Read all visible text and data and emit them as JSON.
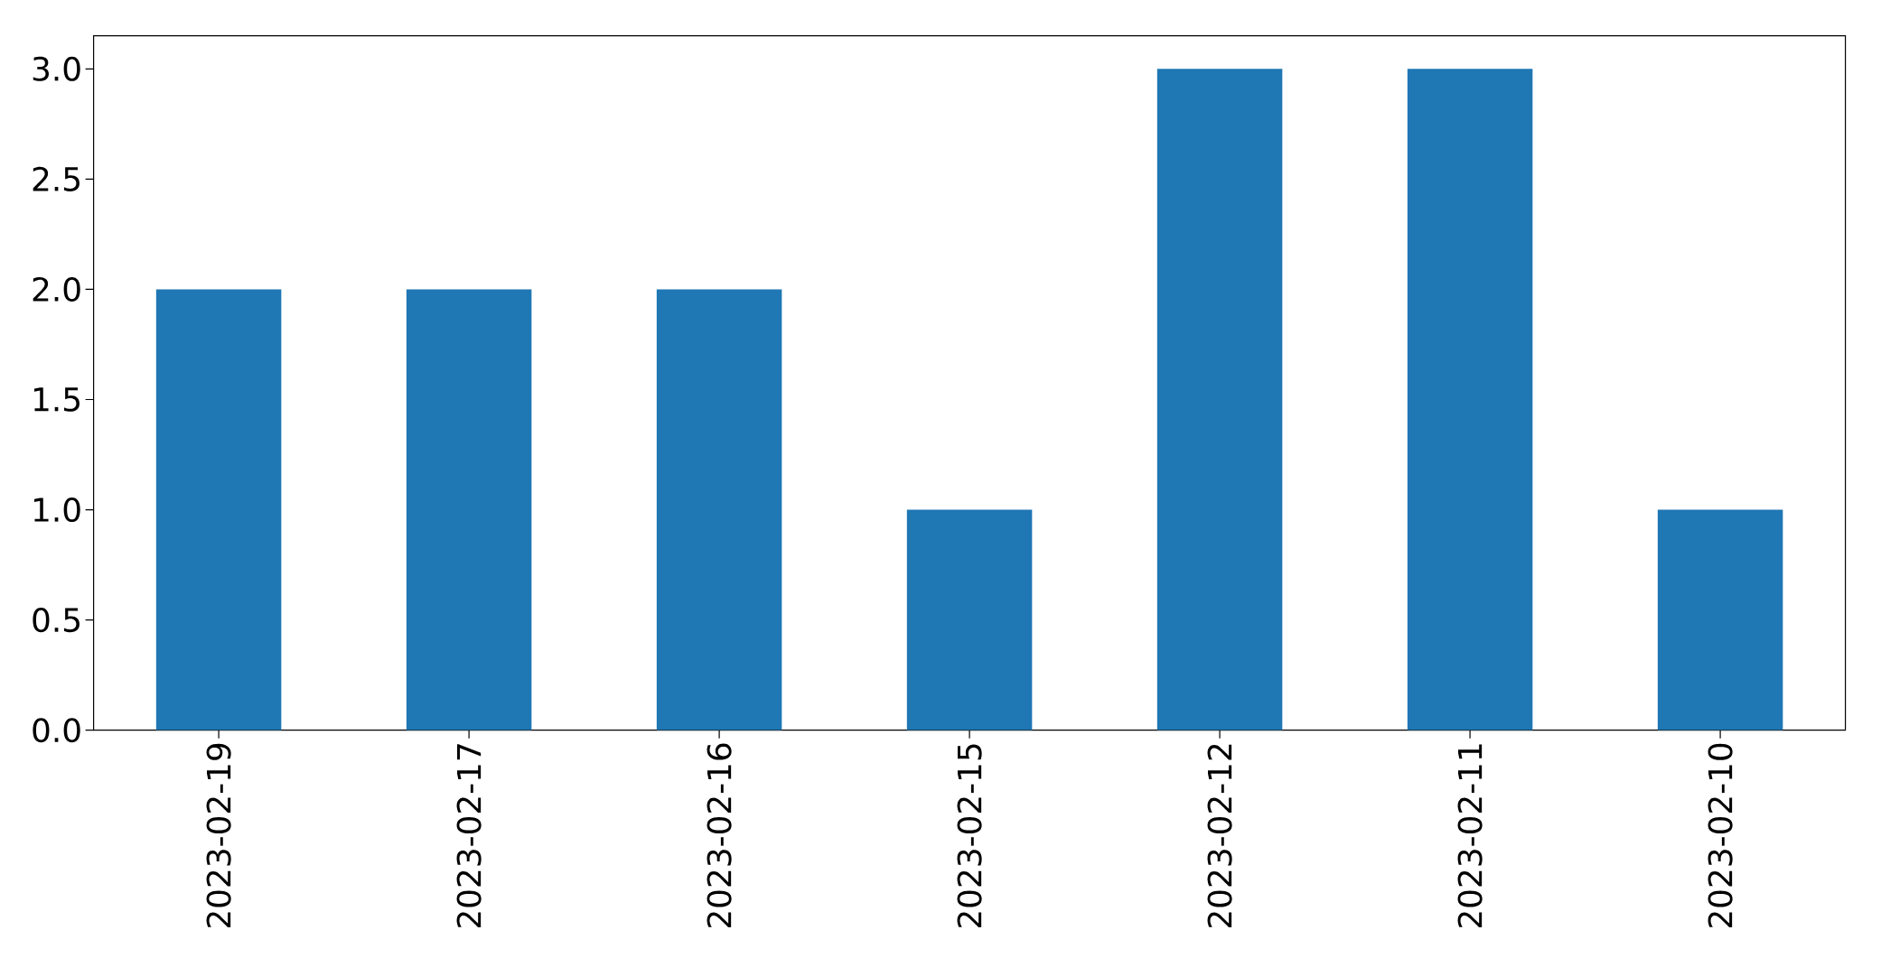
{
  "chart_data": {
    "type": "bar",
    "categories": [
      "2023-02-19",
      "2023-02-17",
      "2023-02-16",
      "2023-02-15",
      "2023-02-12",
      "2023-02-11",
      "2023-02-10"
    ],
    "values": [
      2,
      2,
      2,
      1,
      3,
      3,
      1
    ],
    "color": "#1f77b4",
    "ylim": [
      0,
      3.15
    ],
    "yticks": [
      {
        "value": 0,
        "label": "0.0"
      },
      {
        "value": 0.5,
        "label": "0.5"
      },
      {
        "value": 1,
        "label": "1.0"
      },
      {
        "value": 1.5,
        "label": "1.5"
      },
      {
        "value": 2,
        "label": "2.0"
      },
      {
        "value": 2.5,
        "label": "2.5"
      },
      {
        "value": 3,
        "label": "3.0"
      }
    ],
    "grid": false
  }
}
